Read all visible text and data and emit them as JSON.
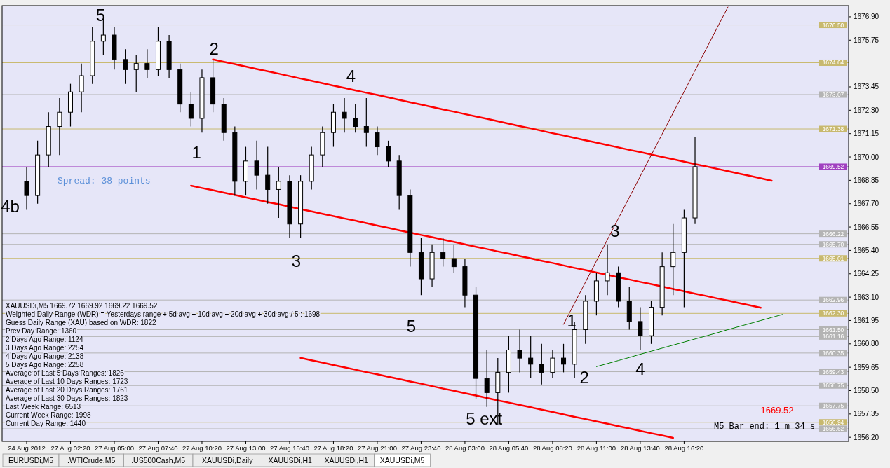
{
  "chart_data": {
    "type": "candlestick",
    "title": "XAUUSDi,M5  1669.72 1669.92 1669.22 1669.52",
    "categories": [
      "24 Aug 2012",
      null,
      null,
      null,
      "27 Aug 02:20",
      null,
      null,
      null,
      "27 Aug 05:00",
      null,
      null,
      null,
      "27 Aug 07:40",
      null,
      null,
      null,
      "27 Aug 10:20",
      null,
      null,
      null,
      "27 Aug 13:00",
      null,
      null,
      null,
      "27 Aug 15:40",
      null,
      null,
      null,
      "27 Aug 18:20",
      null,
      null,
      null,
      "27 Aug 21:00",
      null,
      null,
      null,
      "27 Aug 23:40",
      null,
      null,
      null,
      "28 Aug 03:00",
      null,
      null,
      null,
      "28 Aug 05:40",
      null,
      null,
      null,
      "28 Aug 08:20",
      null,
      null,
      null,
      "28 Aug 11:00",
      null,
      null,
      null,
      "28 Aug 13:40",
      null,
      null,
      null,
      "28 Aug 16:20",
      null,
      null,
      null,
      null,
      null,
      null,
      null,
      null,
      null
    ],
    "ohlc": [
      [
        1668.8,
        1669.5,
        1667.4,
        1668.1
      ],
      [
        1668.1,
        1670.8,
        1667.7,
        1670.1
      ],
      [
        1670.1,
        1672.2,
        1669.5,
        1671.5
      ],
      [
        1671.5,
        1672.9,
        1670.1,
        1672.2
      ],
      [
        1672.2,
        1673.6,
        1671.5,
        1673.2
      ],
      [
        1673.2,
        1674.6,
        1672.2,
        1674.0
      ],
      [
        1674.0,
        1676.4,
        1673.6,
        1675.7
      ],
      [
        1675.7,
        1677.0,
        1675.0,
        1676.0
      ],
      [
        1676.0,
        1676.4,
        1674.3,
        1674.8
      ],
      [
        1674.8,
        1675.3,
        1673.6,
        1674.3
      ],
      [
        1674.3,
        1675.0,
        1673.2,
        1674.6
      ],
      [
        1674.6,
        1675.3,
        1673.9,
        1674.3
      ],
      [
        1674.3,
        1676.4,
        1674.0,
        1675.7
      ],
      [
        1675.7,
        1676.0,
        1673.9,
        1674.3
      ],
      [
        1674.3,
        1674.6,
        1672.2,
        1672.6
      ],
      [
        1672.6,
        1673.2,
        1671.5,
        1671.9
      ],
      [
        1671.9,
        1674.3,
        1671.2,
        1673.9
      ],
      [
        1673.9,
        1674.8,
        1672.2,
        1672.6
      ],
      [
        1672.6,
        1672.9,
        1670.8,
        1671.2
      ],
      [
        1671.2,
        1671.5,
        1668.1,
        1668.8
      ],
      [
        1668.8,
        1670.5,
        1668.1,
        1669.8
      ],
      [
        1669.8,
        1670.8,
        1668.4,
        1669.1
      ],
      [
        1669.1,
        1670.5,
        1667.7,
        1668.4
      ],
      [
        1668.4,
        1669.5,
        1667.0,
        1668.8
      ],
      [
        1668.8,
        1669.1,
        1666.0,
        1666.7
      ],
      [
        1666.7,
        1669.1,
        1666.0,
        1668.8
      ],
      [
        1668.8,
        1670.5,
        1668.4,
        1670.1
      ],
      [
        1670.1,
        1671.5,
        1669.5,
        1671.2
      ],
      [
        1671.2,
        1672.6,
        1670.5,
        1672.2
      ],
      [
        1672.2,
        1672.9,
        1671.2,
        1671.9
      ],
      [
        1671.9,
        1672.6,
        1671.2,
        1671.5
      ],
      [
        1671.5,
        1672.9,
        1670.5,
        1671.2
      ],
      [
        1671.2,
        1671.5,
        1670.1,
        1670.5
      ],
      [
        1670.5,
        1670.8,
        1669.5,
        1669.8
      ],
      [
        1669.8,
        1670.1,
        1667.4,
        1668.1
      ],
      [
        1668.1,
        1668.4,
        1664.6,
        1665.3
      ],
      [
        1665.3,
        1666.0,
        1663.2,
        1664.0
      ],
      [
        1664.0,
        1665.7,
        1663.6,
        1665.3
      ],
      [
        1665.3,
        1666.0,
        1664.6,
        1665.0
      ],
      [
        1665.0,
        1665.7,
        1664.3,
        1664.6
      ],
      [
        1664.6,
        1665.0,
        1662.6,
        1663.2
      ],
      [
        1663.2,
        1663.6,
        1658.1,
        1659.1
      ],
      [
        1659.1,
        1660.5,
        1657.7,
        1658.4
      ],
      [
        1658.4,
        1660.1,
        1656.8,
        1659.4
      ],
      [
        1659.4,
        1661.2,
        1658.4,
        1660.5
      ],
      [
        1660.5,
        1661.5,
        1659.4,
        1660.1
      ],
      [
        1660.1,
        1661.2,
        1659.1,
        1659.8
      ],
      [
        1659.8,
        1660.8,
        1658.8,
        1659.4
      ],
      [
        1659.4,
        1660.5,
        1659.1,
        1660.1
      ],
      [
        1660.1,
        1660.8,
        1659.4,
        1659.8
      ],
      [
        1659.8,
        1661.9,
        1659.1,
        1661.5
      ],
      [
        1661.5,
        1663.2,
        1660.8,
        1662.9
      ],
      [
        1662.9,
        1664.3,
        1662.2,
        1663.9
      ],
      [
        1663.9,
        1665.7,
        1663.2,
        1664.3
      ],
      [
        1664.3,
        1664.6,
        1662.6,
        1662.9
      ],
      [
        1662.9,
        1663.6,
        1661.5,
        1661.9
      ],
      [
        1661.9,
        1662.6,
        1660.5,
        1661.2
      ],
      [
        1661.2,
        1662.9,
        1660.8,
        1662.6
      ],
      [
        1662.6,
        1665.3,
        1662.2,
        1664.6
      ],
      [
        1664.6,
        1666.7,
        1663.2,
        1665.3
      ],
      [
        1665.3,
        1667.4,
        1662.6,
        1667.0
      ],
      [
        1667.0,
        1671.0,
        1666.7,
        1669.52
      ],
      null,
      null,
      null,
      null,
      null,
      null,
      null,
      null
    ],
    "color": "#000000",
    "series": [
      {
        "type": "line",
        "color": "#ff0000",
        "values": [
          null,
          null,
          null,
          null,
          null,
          null,
          null,
          null,
          null,
          null,
          null,
          null,
          null,
          null,
          null,
          null,
          null,
          1674.8,
          1674.68,
          1674.57,
          1674.45,
          1674.33,
          1674.22,
          1674.1,
          1673.98,
          1673.86,
          1673.75,
          1673.63,
          1673.51,
          1673.4,
          1673.28,
          1673.16,
          1673.05,
          1672.93,
          1672.81,
          1672.69,
          1672.58,
          1672.46,
          1672.34,
          1672.23,
          1672.11,
          1671.99,
          1671.88,
          1671.76,
          1671.64,
          1671.52,
          1671.41,
          1671.29,
          1671.17,
          1671.06,
          1670.94,
          1670.82,
          1670.71,
          1670.59,
          1670.47,
          1670.35,
          1670.24,
          1670.12,
          1670.0,
          1669.89,
          1669.77,
          1669.65,
          1669.54,
          1669.42,
          1669.3,
          1669.18,
          1669.07,
          1668.95,
          1668.83,
          null
        ]
      },
      {
        "type": "line",
        "color": "#ff0000",
        "values": [
          null,
          null,
          null,
          null,
          null,
          null,
          null,
          null,
          null,
          null,
          null,
          null,
          null,
          null,
          null,
          1668.59,
          1668.47,
          1668.36,
          1668.24,
          1668.13,
          1668.01,
          1667.9,
          1667.78,
          1667.67,
          1667.55,
          1667.43,
          1667.32,
          1667.2,
          1667.09,
          1666.97,
          1666.86,
          1666.74,
          1666.62,
          1666.51,
          1666.39,
          1666.28,
          1666.16,
          1666.05,
          1665.93,
          1665.82,
          1665.7,
          1665.58,
          1665.47,
          1665.35,
          1665.24,
          1665.12,
          1665.01,
          1664.89,
          1664.78,
          1664.66,
          1664.54,
          1664.43,
          1664.31,
          1664.2,
          1664.08,
          1663.97,
          1663.85,
          1663.74,
          1663.62,
          1663.5,
          1663.39,
          1663.27,
          1663.16,
          1663.04,
          1662.93,
          1662.81,
          1662.7,
          1662.58,
          null,
          null
        ]
      },
      {
        "type": "line",
        "color": "#ff0000",
        "values": [
          null,
          null,
          null,
          null,
          null,
          null,
          null,
          null,
          null,
          null,
          null,
          null,
          null,
          null,
          null,
          null,
          null,
          null,
          null,
          null,
          null,
          null,
          null,
          null,
          null,
          1660.11,
          1659.99,
          1659.88,
          1659.76,
          1659.65,
          1659.53,
          1659.41,
          1659.3,
          1659.18,
          1659.07,
          1658.95,
          1658.84,
          1658.72,
          1658.6,
          1658.49,
          1658.37,
          1658.26,
          1658.14,
          1658.02,
          1657.91,
          1657.79,
          1657.68,
          1657.56,
          1657.45,
          1657.33,
          1657.21,
          1657.1,
          1656.98,
          1656.87,
          1656.75,
          1656.64,
          1656.52,
          1656.4,
          1656.29,
          1656.17,
          null,
          null,
          null,
          null,
          null,
          null,
          null,
          null,
          null,
          null
        ]
      },
      {
        "type": "line",
        "color": "#8b0000",
        "values": [
          null,
          null,
          null,
          null,
          null,
          null,
          null,
          null,
          null,
          null,
          null,
          null,
          null,
          null,
          null,
          null,
          null,
          null,
          null,
          null,
          null,
          null,
          null,
          null,
          null,
          null,
          null,
          null,
          null,
          null,
          null,
          null,
          null,
          null,
          null,
          null,
          null,
          null,
          null,
          null,
          null,
          null,
          null,
          null,
          null,
          null,
          null,
          null,
          null,
          1661.76,
          1662.8,
          1663.84,
          1664.88,
          1665.93,
          1666.97,
          1668.01,
          1669.05,
          1670.09,
          1671.13,
          1672.17,
          1673.21,
          1674.26,
          1675.3,
          1676.34,
          1677.38,
          null,
          null,
          null,
          null,
          null
        ]
      },
      {
        "type": "line",
        "color": "#008000",
        "values": [
          null,
          null,
          null,
          null,
          null,
          null,
          null,
          null,
          null,
          null,
          null,
          null,
          null,
          null,
          null,
          null,
          null,
          null,
          null,
          null,
          null,
          null,
          null,
          null,
          null,
          null,
          null,
          null,
          null,
          null,
          null,
          null,
          null,
          null,
          null,
          null,
          null,
          null,
          null,
          null,
          null,
          null,
          null,
          null,
          null,
          null,
          null,
          null,
          null,
          null,
          null,
          null,
          1659.68,
          1659.83,
          1659.98,
          1660.13,
          1660.29,
          1660.44,
          1660.59,
          1660.74,
          1660.89,
          1661.04,
          1661.19,
          1661.34,
          1661.5,
          1661.65,
          1661.8,
          1661.95,
          1662.1,
          1662.25
        ]
      }
    ],
    "ylim": [
      1656.0,
      1677.45
    ],
    "yticks": [
      {
        "value": 1676.9,
        "label": "1676.90"
      },
      {
        "value": 1675.75,
        "label": "1675.75"
      },
      {
        "value": 1673.45,
        "label": "1673.45"
      },
      {
        "value": 1672.3,
        "label": "1672.30"
      },
      {
        "value": 1671.15,
        "label": "1671.15"
      },
      {
        "value": 1670.0,
        "label": "1670.00"
      },
      {
        "value": 1668.85,
        "label": "1668.85"
      },
      {
        "value": 1667.7,
        "label": "1667.70"
      },
      {
        "value": 1666.55,
        "label": "1666.55"
      },
      {
        "value": 1665.4,
        "label": "1665.40"
      },
      {
        "value": 1664.25,
        "label": "1664.25"
      },
      {
        "value": 1663.1,
        "label": "1663.10"
      },
      {
        "value": 1661.95,
        "label": "1661.95"
      },
      {
        "value": 1660.8,
        "label": "1660.80"
      },
      {
        "value": 1659.65,
        "label": "1659.65"
      },
      {
        "value": 1658.5,
        "label": "1658.50"
      },
      {
        "value": 1657.35,
        "label": "1657.35"
      },
      {
        "value": 1656.2,
        "label": "1656.20"
      }
    ],
    "ref_lines": [
      {
        "axis": "y",
        "value": 1676.5,
        "label": "1676.50",
        "color": "#c8b96e"
      },
      {
        "axis": "y",
        "value": 1674.64,
        "label": "1674.64",
        "color": "#c8b96e"
      },
      {
        "axis": "y",
        "value": 1673.07,
        "label": "1673.07",
        "color": "#b4b4b4"
      },
      {
        "axis": "y",
        "value": 1671.38,
        "label": "1671.38",
        "color": "#c8b96e"
      },
      {
        "axis": "y",
        "value": 1669.52,
        "label": "1669.52",
        "color": "#a040c0"
      },
      {
        "axis": "y",
        "value": 1666.22,
        "label": "1666.22",
        "color": "#b4b4b4"
      },
      {
        "axis": "y",
        "value": 1665.7,
        "label": "1665.70",
        "color": "#b4b4b4"
      },
      {
        "axis": "y",
        "value": 1665.01,
        "label": "1665.01",
        "color": "#c8b96e"
      },
      {
        "axis": "y",
        "value": 1662.96,
        "label": "1662.96",
        "color": "#b4b4b4"
      },
      {
        "axis": "y",
        "value": 1662.3,
        "label": "1662.30",
        "color": "#c8b96e"
      },
      {
        "axis": "y",
        "value": 1661.5,
        "label": "1661.50",
        "color": "#b4b4b4"
      },
      {
        "axis": "y",
        "value": 1661.16,
        "label": "1661.16",
        "color": "#b4b4b4"
      },
      {
        "axis": "y",
        "value": 1660.35,
        "label": "1660.35",
        "color": "#b4b4b4"
      },
      {
        "axis": "y",
        "value": 1659.43,
        "label": "1659.43",
        "color": "#b4b4b4"
      },
      {
        "axis": "y",
        "value": 1658.75,
        "label": "1658.75",
        "color": "#b4b4b4"
      },
      {
        "axis": "y",
        "value": 1657.75,
        "label": "1657.75",
        "color": "#b4b4b4"
      },
      {
        "axis": "y",
        "value": 1656.94,
        "label": "1656.94",
        "color": "#c8b96e"
      },
      {
        "axis": "y",
        "value": 1656.62,
        "label": "1656.62",
        "color": "#b4b4b4"
      }
    ],
    "annotations": [
      "Weighted Daily Range (WDR) = Yesterdays range + 5d avg + 10d avg + 20d avg + 30d avg / 5 : 1698",
      "Guess Daily Range (XAU) based on WDR: 1822",
      "Prev Day Range: 1360",
      "2 Days Ago Range: 1124",
      "3 Days Ago Range: 2254",
      "4 Days Ago Range: 2138",
      "5 Days Ago Range: 2258",
      "Average of Last 5 Days Ranges: 1826",
      "Average of Last 10 Days Ranges: 1723",
      "Average of Last 20 Days Ranges: 1761",
      "Average of Last 30 Days Ranges: 1823",
      "Last Week Range: 6513",
      "Current Week Range: 1998",
      "Current Day Range: 1440",
      "Spread: 38 points",
      "1669.52",
      "M5 Bar end: 1 m 34 s",
      "EURUSDi,M5",
      ".WTICrude,M5",
      ".US500Cash,M5",
      "XAUUSDi,Daily",
      "XAUUSDi,H1",
      "XAUUSDi,H1",
      "XAUUSDi,M5",
      "4b",
      "5",
      "2",
      "1",
      "4",
      "3",
      "5",
      "5 ext",
      "1",
      "2",
      "3",
      "4"
    ]
  }
}
